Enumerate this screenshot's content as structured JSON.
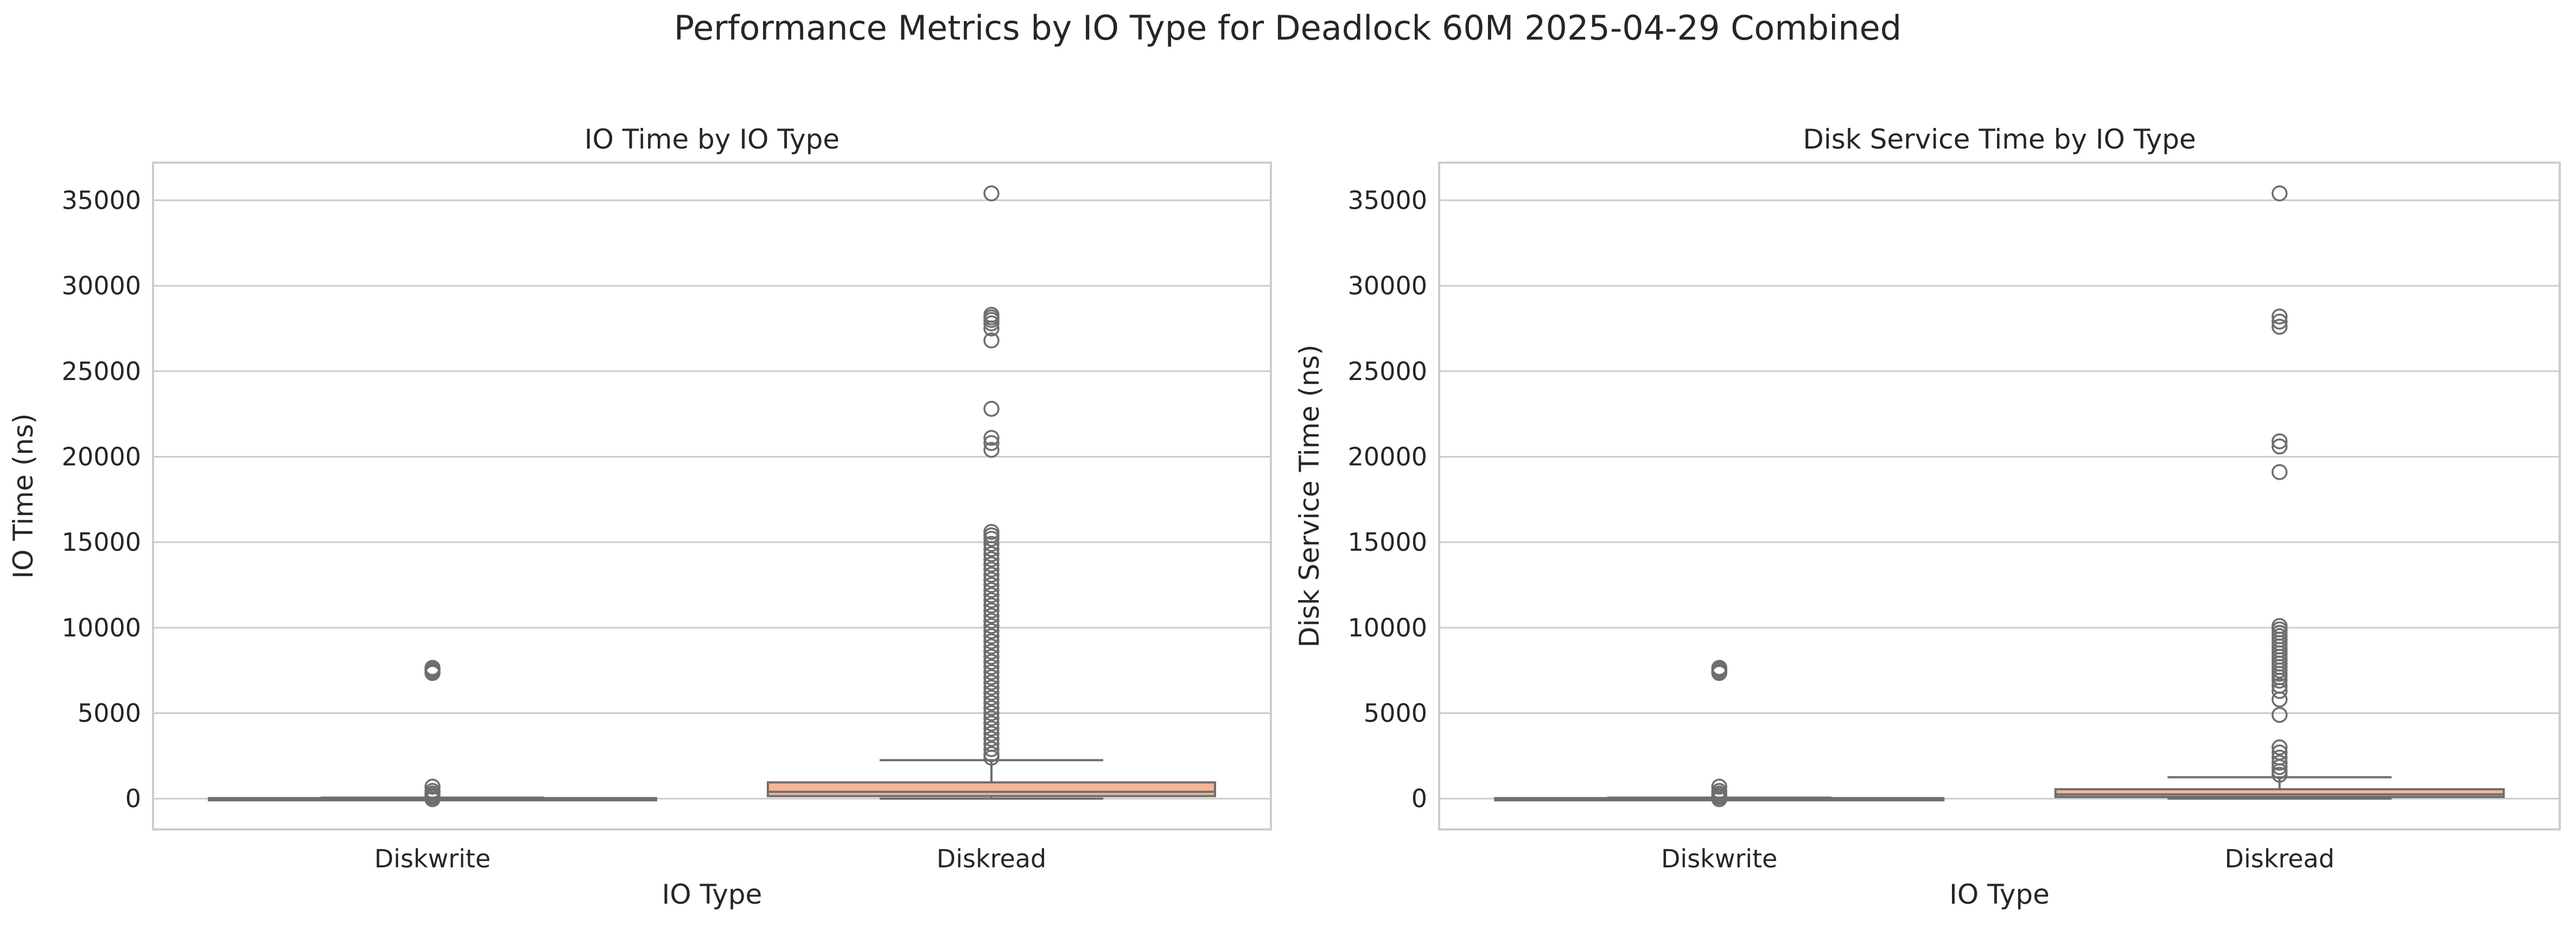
{
  "figure": {
    "suptitle": "Performance Metrics by IO Type for Deadlock 60M 2025-04-29 Combined"
  },
  "chart_data": [
    {
      "type": "box",
      "title": "IO Time by IO Type",
      "xlabel": "IO Type",
      "ylabel": "IO Time (ns)",
      "categories": [
        "Diskwrite",
        "Diskread"
      ],
      "ylim": [
        -1800,
        37200
      ],
      "yticks": [
        0,
        5000,
        10000,
        15000,
        20000,
        25000,
        30000,
        35000
      ],
      "grid": "horizontal",
      "box_colors": [
        "#8fd3c2",
        "#f8b595"
      ],
      "boxes": [
        {
          "category": "Diskwrite",
          "min": 0,
          "q1": 5,
          "median": 10,
          "q3": 30,
          "max": 60,
          "outliers": [
            7350,
            7450,
            7550,
            7650,
            700,
            450,
            300,
            180,
            90,
            -30
          ]
        },
        {
          "category": "Diskread",
          "min": 0,
          "q1": 150,
          "median": 400,
          "q3": 950,
          "max": 2250,
          "outliers": [
            35400,
            28300,
            28150,
            28000,
            27800,
            27500,
            26800,
            22800,
            21100,
            20800,
            20400,
            15600,
            15400,
            15200,
            14900,
            14600,
            14300,
            14000,
            13700,
            13400,
            13100,
            12800,
            12500,
            12200,
            11900,
            11600,
            11300,
            11000,
            10700,
            10400,
            10100,
            9800,
            9500,
            9200,
            8900,
            8600,
            8300,
            8000,
            7700,
            7400,
            7100,
            6800,
            6500,
            6200,
            5900,
            5600,
            5300,
            5000,
            4700,
            4400,
            4100,
            3800,
            3500,
            3200,
            2900,
            2600,
            2400
          ]
        }
      ]
    },
    {
      "type": "box",
      "title": "Disk Service Time by IO Type",
      "xlabel": "IO Type",
      "ylabel": "Disk Service Time (ns)",
      "categories": [
        "Diskwrite",
        "Diskread"
      ],
      "ylim": [
        -1800,
        37200
      ],
      "yticks": [
        0,
        5000,
        10000,
        15000,
        20000,
        25000,
        30000,
        35000
      ],
      "grid": "horizontal",
      "box_colors": [
        "#8fd3c2",
        "#f8b595"
      ],
      "boxes": [
        {
          "category": "Diskwrite",
          "min": 0,
          "q1": 5,
          "median": 10,
          "q3": 30,
          "max": 60,
          "outliers": [
            7350,
            7450,
            7550,
            7650,
            700,
            450,
            300,
            180,
            90,
            -30
          ]
        },
        {
          "category": "Diskread",
          "min": 0,
          "q1": 100,
          "median": 250,
          "q3": 550,
          "max": 1250,
          "outliers": [
            35400,
            28200,
            27900,
            27600,
            20900,
            20600,
            19100,
            10100,
            9900,
            9700,
            9500,
            9300,
            9100,
            8900,
            8700,
            8500,
            8300,
            8100,
            7900,
            7700,
            7500,
            7300,
            7100,
            6900,
            6600,
            6300,
            5800,
            4900,
            3000,
            2700,
            2400,
            2100,
            1850,
            1600,
            1400
          ]
        }
      ]
    }
  ]
}
